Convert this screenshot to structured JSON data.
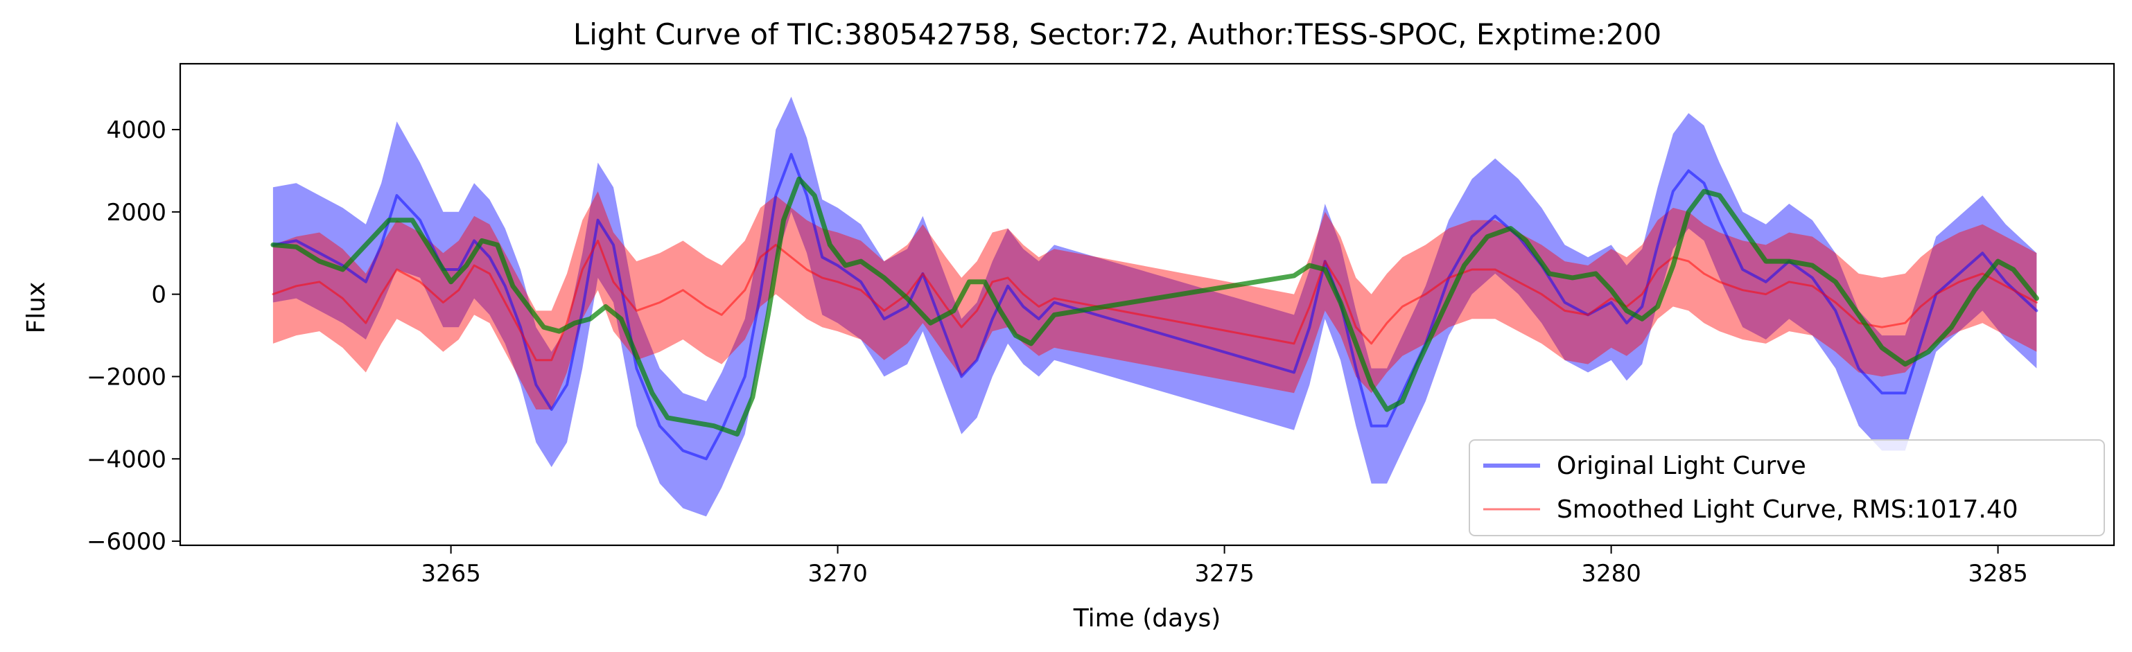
{
  "chart_data": {
    "type": "line",
    "title": "Light Curve of TIC:380542758, Sector:72, Author:TESS-SPOC, Exptime:200",
    "xlabel": "Time (days)",
    "ylabel": "Flux",
    "xlim": [
      3261.5,
      3286.5
    ],
    "ylim": [
      -6100,
      5600
    ],
    "xticks": [
      3265,
      3270,
      3275,
      3280,
      3285
    ],
    "yticks": [
      -6000,
      -4000,
      -2000,
      0,
      2000,
      4000
    ],
    "xtick_labels": [
      "3265",
      "3270",
      "3275",
      "3280",
      "3285"
    ],
    "ytick_labels": [
      "−6000",
      "−4000",
      "−2000",
      "0",
      "2000",
      "4000"
    ],
    "grid": false,
    "legend_position": "lower-right",
    "legend": [
      "Original Light Curve",
      "Smoothed Light Curve, RMS:1017.40"
    ],
    "series": [
      {
        "name": "Original Light Curve",
        "color": "#0000ff",
        "opacity": 0.5,
        "x": [
          3262.7,
          3263.0,
          3263.3,
          3263.6,
          3263.9,
          3264.1,
          3264.3,
          3264.6,
          3264.9,
          3265.1,
          3265.3,
          3265.5,
          3265.7,
          3265.9,
          3266.1,
          3266.3,
          3266.5,
          3266.7,
          3266.9,
          3267.1,
          3267.4,
          3267.7,
          3268.0,
          3268.3,
          3268.5,
          3268.8,
          3269.0,
          3269.2,
          3269.4,
          3269.6,
          3269.8,
          3270.0,
          3270.3,
          3270.6,
          3270.9,
          3271.1,
          3271.4,
          3271.6,
          3271.8,
          3272.0,
          3272.2,
          3272.4,
          3272.6,
          3272.8,
          3275.9,
          3276.1,
          3276.3,
          3276.5,
          3276.7,
          3276.9,
          3277.1,
          3277.3,
          3277.6,
          3277.9,
          3278.2,
          3278.5,
          3278.8,
          3279.1,
          3279.4,
          3279.7,
          3280.0,
          3280.2,
          3280.4,
          3280.6,
          3280.8,
          3281.0,
          3281.2,
          3281.4,
          3281.7,
          3282.0,
          3282.3,
          3282.6,
          3282.9,
          3283.2,
          3283.5,
          3283.8,
          3284.0,
          3284.2,
          3284.5,
          3284.8,
          3285.1,
          3285.5
        ],
        "y": [
          1200,
          1300,
          1000,
          700,
          300,
          1200,
          2400,
          1800,
          600,
          600,
          1300,
          900,
          200,
          -800,
          -2200,
          -2800,
          -2200,
          -400,
          1800,
          1200,
          -1800,
          -3200,
          -3800,
          -4000,
          -3300,
          -2000,
          0,
          2400,
          3400,
          2400,
          900,
          700,
          300,
          -600,
          -300,
          500,
          -1000,
          -2000,
          -1600,
          -600,
          200,
          -300,
          -600,
          -200,
          -1900,
          -800,
          800,
          -200,
          -1800,
          -3200,
          -3200,
          -2400,
          -1200,
          400,
          1400,
          1900,
          1400,
          700,
          -200,
          -500,
          -200,
          -700,
          -300,
          1200,
          2500,
          3000,
          2700,
          1800,
          600,
          300,
          800,
          400,
          -400,
          -1800,
          -2400,
          -2400,
          -1200,
          0,
          500,
          1000,
          300,
          -400
        ],
        "y_upper": [
          2600,
          2700,
          2400,
          2100,
          1700,
          2700,
          4200,
          3200,
          2000,
          2000,
          2700,
          2300,
          1600,
          600,
          -800,
          -1400,
          -800,
          1000,
          3200,
          2600,
          -400,
          -1800,
          -2400,
          -2600,
          -1900,
          -600,
          1400,
          4000,
          4800,
          3800,
          2300,
          2100,
          1700,
          800,
          1100,
          1900,
          400,
          -600,
          -200,
          800,
          1600,
          1100,
          800,
          1200,
          -500,
          600,
          2200,
          1200,
          -400,
          -1800,
          -1800,
          -1000,
          200,
          1800,
          2800,
          3300,
          2800,
          2100,
          1200,
          900,
          1200,
          700,
          1100,
          2600,
          3900,
          4400,
          4100,
          3200,
          2000,
          1700,
          2200,
          1800,
          1000,
          -400,
          -1000,
          -1000,
          200,
          1400,
          1900,
          2400,
          1700,
          1000
        ],
        "y_lower": [
          -200,
          -100,
          -400,
          -700,
          -1100,
          -300,
          600,
          400,
          -800,
          -800,
          -100,
          -500,
          -1200,
          -2200,
          -3600,
          -4200,
          -3600,
          -1800,
          400,
          -200,
          -3200,
          -4600,
          -5200,
          -5400,
          -4700,
          -3400,
          -1400,
          800,
          2000,
          1000,
          -500,
          -700,
          -1100,
          -2000,
          -1700,
          -900,
          -2400,
          -3400,
          -3000,
          -2000,
          -1200,
          -1700,
          -2000,
          -1600,
          -3300,
          -2200,
          -600,
          -1600,
          -3200,
          -4600,
          -4600,
          -3800,
          -2600,
          -1000,
          0,
          500,
          0,
          -700,
          -1600,
          -1900,
          -1600,
          -2100,
          -1700,
          -200,
          1100,
          1600,
          1300,
          400,
          -800,
          -1100,
          -600,
          -1000,
          -1800,
          -3200,
          -3800,
          -3800,
          -2600,
          -1400,
          -900,
          -400,
          -1100,
          -1800
        ]
      },
      {
        "name": "Smoothed Light Curve, RMS:1017.40",
        "color": "#ff0000",
        "opacity": 0.5,
        "x": [
          3262.7,
          3263.0,
          3263.3,
          3263.6,
          3263.9,
          3264.1,
          3264.3,
          3264.6,
          3264.9,
          3265.1,
          3265.3,
          3265.5,
          3265.7,
          3265.9,
          3266.1,
          3266.3,
          3266.5,
          3266.7,
          3266.9,
          3267.1,
          3267.4,
          3267.7,
          3268.0,
          3268.3,
          3268.5,
          3268.8,
          3269.0,
          3269.2,
          3269.4,
          3269.6,
          3269.8,
          3270.0,
          3270.3,
          3270.6,
          3270.9,
          3271.1,
          3271.4,
          3271.6,
          3271.8,
          3272.0,
          3272.2,
          3272.4,
          3272.6,
          3272.8,
          3275.9,
          3276.1,
          3276.3,
          3276.5,
          3276.7,
          3276.9,
          3277.1,
          3277.3,
          3277.6,
          3277.9,
          3278.2,
          3278.5,
          3278.8,
          3279.1,
          3279.4,
          3279.7,
          3280.0,
          3280.2,
          3280.4,
          3280.6,
          3280.8,
          3281.0,
          3281.2,
          3281.4,
          3281.7,
          3282.0,
          3282.3,
          3282.6,
          3282.9,
          3283.2,
          3283.5,
          3283.8,
          3284.0,
          3284.2,
          3284.5,
          3284.8,
          3285.1,
          3285.5
        ],
        "y": [
          0,
          200,
          300,
          -100,
          -700,
          0,
          600,
          300,
          -200,
          100,
          700,
          500,
          -200,
          -900,
          -1600,
          -1600,
          -700,
          600,
          1300,
          300,
          -400,
          -200,
          100,
          -300,
          -500,
          100,
          900,
          1200,
          900,
          600,
          400,
          300,
          100,
          -400,
          0,
          500,
          -300,
          -800,
          -400,
          300,
          400,
          0,
          -300,
          -100,
          -1200,
          -300,
          800,
          200,
          -800,
          -1200,
          -700,
          -300,
          0,
          400,
          600,
          600,
          300,
          0,
          -400,
          -500,
          -100,
          -300,
          0,
          600,
          900,
          800,
          500,
          300,
          100,
          0,
          300,
          200,
          -200,
          -700,
          -800,
          -700,
          -300,
          0,
          300,
          500,
          200,
          -200
        ],
        "y_upper": [
          1200,
          1400,
          1500,
          1100,
          500,
          1200,
          1800,
          1500,
          1000,
          1300,
          1900,
          1700,
          1000,
          300,
          -400,
          -400,
          500,
          1800,
          2500,
          1500,
          800,
          1000,
          1300,
          900,
          700,
          1300,
          2100,
          2400,
          2100,
          1800,
          1600,
          1500,
          1300,
          800,
          1200,
          1700,
          900,
          400,
          800,
          1500,
          1600,
          1200,
          900,
          1100,
          0,
          900,
          2000,
          1400,
          400,
          0,
          500,
          900,
          1200,
          1600,
          1800,
          1800,
          1500,
          1200,
          800,
          700,
          1100,
          900,
          1200,
          1800,
          2100,
          2000,
          1700,
          1500,
          1300,
          1200,
          1500,
          1400,
          1000,
          500,
          400,
          500,
          900,
          1200,
          1500,
          1700,
          1400,
          1000
        ],
        "y_lower": [
          -1200,
          -1000,
          -900,
          -1300,
          -1900,
          -1200,
          -600,
          -900,
          -1400,
          -1100,
          -500,
          -700,
          -1400,
          -2100,
          -2800,
          -2800,
          -1900,
          -600,
          100,
          -900,
          -1600,
          -1400,
          -1100,
          -1500,
          -1700,
          -1100,
          -300,
          0,
          -300,
          -600,
          -800,
          -900,
          -1100,
          -1600,
          -1200,
          -700,
          -1500,
          -2000,
          -1600,
          -900,
          -800,
          -1200,
          -1500,
          -1300,
          -2400,
          -1500,
          -400,
          -1000,
          -2000,
          -2400,
          -1900,
          -1500,
          -1200,
          -800,
          -600,
          -600,
          -900,
          -1200,
          -1600,
          -1700,
          -1300,
          -1500,
          -1200,
          -600,
          -300,
          -400,
          -700,
          -900,
          -1100,
          -1200,
          -900,
          -1000,
          -1400,
          -1900,
          -2000,
          -1900,
          -1500,
          -1200,
          -900,
          -700,
          -1000,
          -1400
        ]
      },
      {
        "color": "#008000",
        "opacity": 0.7,
        "x": [
          3262.7,
          3263.0,
          3263.3,
          3263.6,
          3263.9,
          3264.2,
          3264.5,
          3264.8,
          3265.0,
          3265.2,
          3265.4,
          3265.6,
          3265.8,
          3266.0,
          3266.2,
          3266.4,
          3266.6,
          3266.8,
          3267.0,
          3267.2,
          3267.4,
          3267.6,
          3267.8,
          3268.1,
          3268.4,
          3268.7,
          3268.9,
          3269.1,
          3269.3,
          3269.5,
          3269.7,
          3269.9,
          3270.1,
          3270.3,
          3270.6,
          3270.9,
          3271.2,
          3271.5,
          3271.7,
          3271.9,
          3272.1,
          3272.3,
          3272.5,
          3272.8,
          3275.9,
          3276.1,
          3276.3,
          3276.5,
          3276.7,
          3276.9,
          3277.1,
          3277.3,
          3277.5,
          3277.8,
          3278.1,
          3278.4,
          3278.7,
          3278.9,
          3279.2,
          3279.5,
          3279.8,
          3280.0,
          3280.2,
          3280.4,
          3280.6,
          3280.8,
          3281.0,
          3281.2,
          3281.4,
          3281.7,
          3282.0,
          3282.3,
          3282.6,
          3282.9,
          3283.2,
          3283.5,
          3283.8,
          3284.1,
          3284.4,
          3284.7,
          3285.0,
          3285.2,
          3285.5
        ],
        "y": [
          1200,
          1150,
          800,
          600,
          1200,
          1800,
          1800,
          900,
          300,
          700,
          1300,
          1200,
          200,
          -300,
          -800,
          -900,
          -700,
          -600,
          -300,
          -600,
          -1500,
          -2400,
          -3000,
          -3100,
          -3200,
          -3400,
          -2500,
          -500,
          1800,
          2800,
          2400,
          1200,
          700,
          800,
          400,
          -100,
          -700,
          -400,
          300,
          300,
          -400,
          -1000,
          -1200,
          -500,
          450,
          700,
          600,
          -200,
          -1200,
          -2200,
          -2800,
          -2600,
          -1700,
          -500,
          700,
          1400,
          1600,
          1300,
          500,
          400,
          500,
          100,
          -400,
          -600,
          -300,
          700,
          2000,
          2500,
          2400,
          1600,
          800,
          800,
          700,
          300,
          -500,
          -1300,
          -1700,
          -1400,
          -800,
          100,
          800,
          600,
          -100
        ]
      }
    ]
  }
}
